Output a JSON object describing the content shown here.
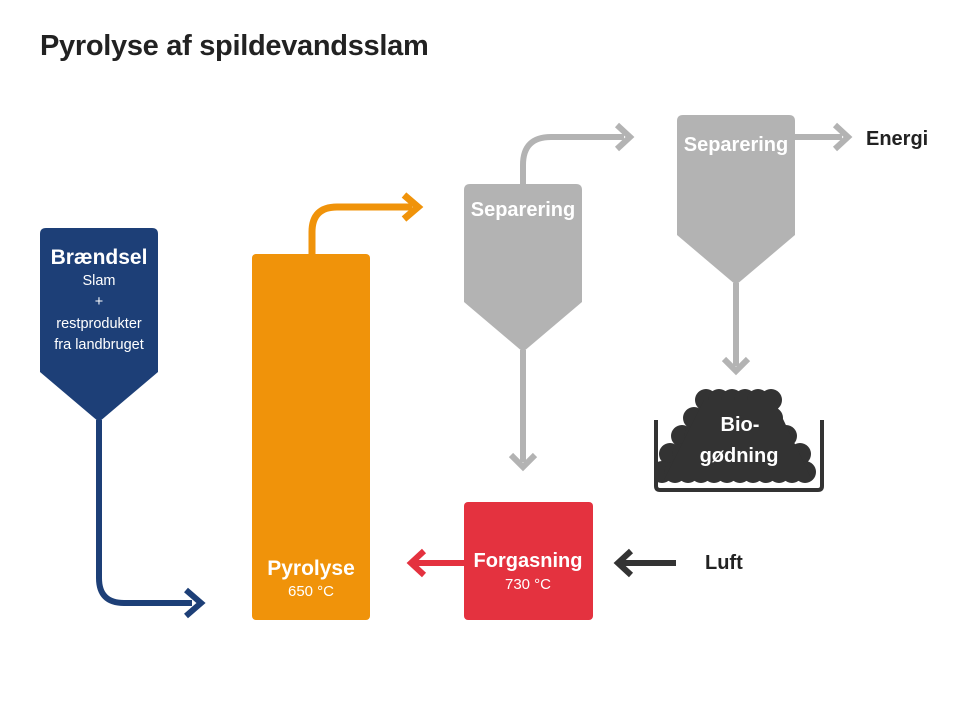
{
  "title": "Pyrolyse af spildevandsslam",
  "colors": {
    "fuel": "#1d3f77",
    "pyrolysis": "#f0930a",
    "separation": "#b3b3b3",
    "gasification": "#e4323f",
    "dark": "#333333"
  },
  "nodes": {
    "fuel": {
      "title": "Brændsel",
      "lines": [
        "Slam",
        "+",
        "restprodukter",
        "fra landbruget"
      ]
    },
    "pyrolysis": {
      "title": "Pyrolyse",
      "temp": "650 °C"
    },
    "separation1": {
      "title": "Separering"
    },
    "separation2": {
      "title": "Separering"
    },
    "energy": {
      "title": "Energi"
    },
    "fertilizer": {
      "line1": "Bio-",
      "line2": "gødning"
    },
    "gasification": {
      "title": "Forgasning",
      "temp": "730 °C"
    },
    "air": {
      "title": "Luft"
    }
  }
}
